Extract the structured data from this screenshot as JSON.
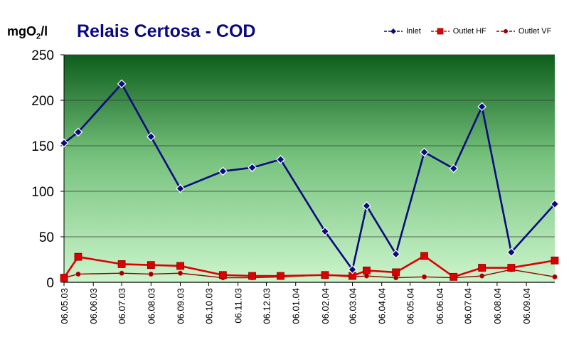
{
  "chart_data": {
    "type": "line",
    "title": "Relais Certosa - COD",
    "ylabel_prefix": "mgO",
    "ylabel_sub": "2",
    "ylabel_suffix": "/l",
    "ylim": [
      0,
      250
    ],
    "yticks": [
      0,
      50,
      100,
      150,
      200,
      250
    ],
    "grid": true,
    "legend_position": "top-right",
    "xlim": [
      "06.05.03",
      "06.10.04"
    ],
    "x_tick_labels": [
      "06.05.03",
      "06.06.03",
      "06.07.03",
      "06.08.03",
      "06.09.03",
      "06.10.03",
      "06.11.03",
      "06.12.03",
      "06.01.04",
      "06.02.04",
      "06.03.04",
      "06.04.04",
      "06.05.04",
      "06.06.04",
      "06.07.04",
      "06.08.04",
      "06.09.04"
    ],
    "x": [
      "06.05.03",
      "21.05.03",
      "06.07.03",
      "06.08.03",
      "06.09.03",
      "21.10.03",
      "21.11.03",
      "21.12.03",
      "06.02.04",
      "06.03.04",
      "21.03.04",
      "21.04.04",
      "21.05.04",
      "21.06.04",
      "21.07.04",
      "21.08.04",
      "06.10.04"
    ],
    "series": [
      {
        "name": "Inlet",
        "color": "#0a0a80",
        "marker": "diamond",
        "values": [
          153,
          165,
          218,
          160,
          103,
          122,
          126,
          135,
          56,
          14,
          84,
          31,
          143,
          125,
          193,
          33,
          86
        ]
      },
      {
        "name": "Outlet HF",
        "color": "#dd0000",
        "marker": "square",
        "values": [
          5,
          28,
          20,
          19,
          18,
          8,
          7,
          7,
          8,
          7,
          13,
          11,
          29,
          6,
          16,
          16,
          24
        ]
      },
      {
        "name": "Outlet VF",
        "color": "#990000",
        "marker": "circle",
        "values": [
          5,
          9,
          10,
          9,
          10,
          5,
          5,
          6,
          8,
          6,
          7,
          5,
          6,
          5,
          7,
          14,
          6
        ]
      }
    ]
  }
}
